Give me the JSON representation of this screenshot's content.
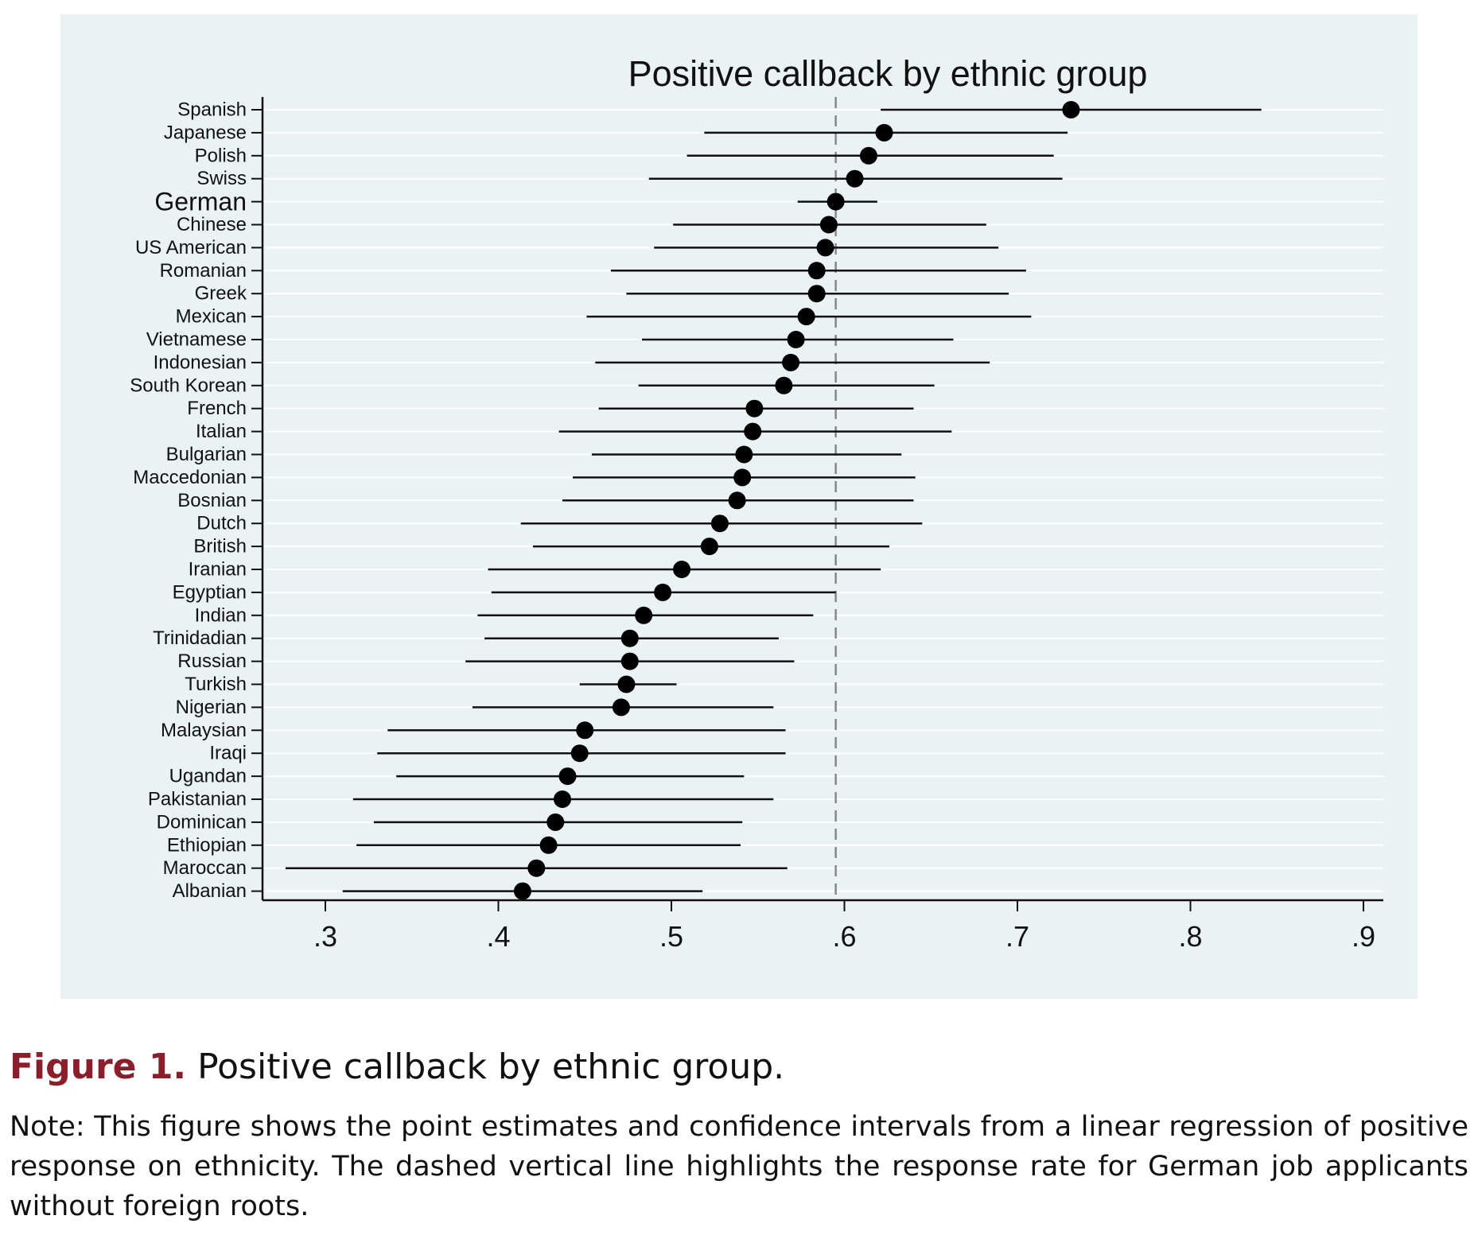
{
  "chart_data": {
    "type": "scatter",
    "title": "Positive callback by ethnic group",
    "xlim": [
      0.27,
      0.91
    ],
    "xticks": [
      0.3,
      0.4,
      0.5,
      0.6,
      0.7,
      0.8,
      0.9
    ],
    "xtick_labels": [
      ".3",
      ".4",
      ".5",
      ".6",
      ".7",
      ".8",
      ".9"
    ],
    "reference_line": {
      "x": 0.595,
      "style": "dashed",
      "color": "#888888"
    },
    "grid": true,
    "highlight_category": "German",
    "categories": [
      "Spanish",
      "Japanese",
      "Polish",
      "Swiss",
      "German",
      "Chinese",
      "US American",
      "Romanian",
      "Greek",
      "Mexican",
      "Vietnamese",
      "Indonesian",
      "South Korean",
      "French",
      "Italian",
      "Bulgarian",
      "Maccedonian",
      "Bosnian",
      "Dutch",
      "British",
      "Iranian",
      "Egyptian",
      "Indian",
      "Trinidadian",
      "Russian",
      "Turkish",
      "Nigerian",
      "Malaysian",
      "Iraqi",
      "Ugandan",
      "Pakistanian",
      "Dominican",
      "Ethiopian",
      "Maroccan",
      "Albanian"
    ],
    "estimates": [
      0.731,
      0.623,
      0.614,
      0.606,
      0.595,
      0.591,
      0.589,
      0.584,
      0.584,
      0.578,
      0.572,
      0.569,
      0.565,
      0.548,
      0.547,
      0.542,
      0.541,
      0.538,
      0.528,
      0.522,
      0.506,
      0.495,
      0.484,
      0.476,
      0.476,
      0.474,
      0.471,
      0.45,
      0.447,
      0.44,
      0.437,
      0.433,
      0.429,
      0.422,
      0.414
    ],
    "ci_lower": [
      0.621,
      0.519,
      0.509,
      0.487,
      0.573,
      0.501,
      0.49,
      0.465,
      0.474,
      0.451,
      0.483,
      0.456,
      0.481,
      0.458,
      0.435,
      0.454,
      0.443,
      0.437,
      0.413,
      0.42,
      0.394,
      0.396,
      0.388,
      0.392,
      0.381,
      0.447,
      0.385,
      0.336,
      0.33,
      0.341,
      0.316,
      0.328,
      0.318,
      0.277,
      0.31
    ],
    "ci_upper": [
      0.841,
      0.729,
      0.721,
      0.726,
      0.619,
      0.682,
      0.689,
      0.705,
      0.695,
      0.708,
      0.663,
      0.684,
      0.652,
      0.64,
      0.662,
      0.633,
      0.641,
      0.64,
      0.645,
      0.626,
      0.621,
      0.595,
      0.582,
      0.562,
      0.571,
      0.503,
      0.559,
      0.566,
      0.566,
      0.542,
      0.559,
      0.541,
      0.54,
      0.567,
      0.518
    ]
  },
  "caption": {
    "label": "Figure 1.",
    "title": "Positive callback by ethnic group.",
    "note": "Note: This figure shows the point estimates and confidence intervals from a linear regression of positive response on ethnicity. The dashed vertical line highlights the response rate for German job applicants without foreign roots."
  }
}
